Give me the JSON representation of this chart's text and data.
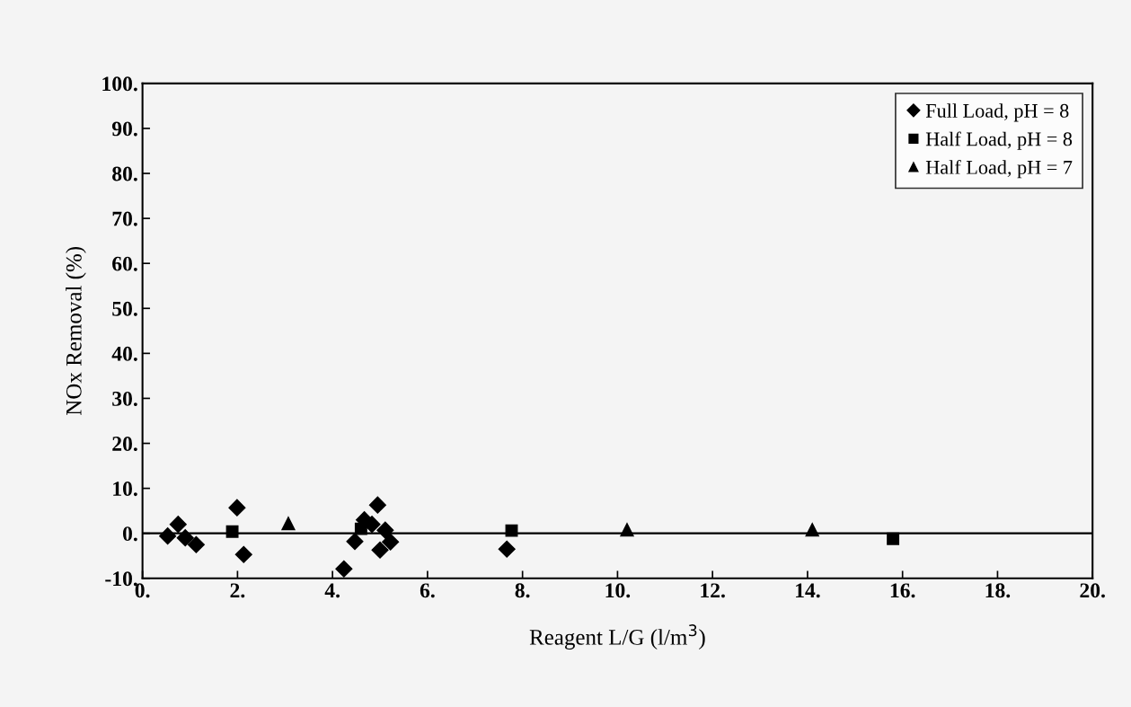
{
  "chart_data": {
    "type": "scatter",
    "xlabel": "Reagent L/G (l/m$^{3}$)",
    "ylabel": "NOx Removal (%)",
    "series": [
      {
        "name": "Full Load, pH = 8",
        "color": "#000000",
        "marker": "diamond",
        "x": [
          0.53,
          0.75,
          0.9,
          1.13,
          1.99,
          2.13,
          4.24,
          4.47,
          4.67,
          4.83,
          4.95,
          5.11,
          5.0,
          5.22,
          7.67
        ],
        "values": [
          -0.6,
          2.0,
          -1.0,
          -2.5,
          5.7,
          -4.7,
          -7.9,
          -1.8,
          3.0,
          2.0,
          6.3,
          0.7,
          -3.7,
          -1.9,
          -3.5
        ]
      },
      {
        "name": "Half Load, pH = 8",
        "color": "#000000",
        "marker": "square",
        "x": [
          1.89,
          4.6,
          7.77,
          15.8
        ],
        "values": [
          0.4,
          1.0,
          0.6,
          -1.2
        ]
      },
      {
        "name": "Half Load, pH = 7",
        "color": "#000000",
        "marker": "triangle",
        "x": [
          3.07,
          10.2,
          14.1
        ],
        "values": [
          2.2,
          0.8,
          0.8
        ]
      }
    ],
    "xlim": [
      0,
      20
    ],
    "ylim": [
      -10,
      100
    ],
    "xticks": [
      {
        "value": 0,
        "label": "0."
      },
      {
        "value": 2,
        "label": "2."
      },
      {
        "value": 4,
        "label": "4."
      },
      {
        "value": 6,
        "label": "6."
      },
      {
        "value": 8,
        "label": "8."
      },
      {
        "value": 10,
        "label": "10."
      },
      {
        "value": 12,
        "label": "12."
      },
      {
        "value": 14,
        "label": "14."
      },
      {
        "value": 16,
        "label": "16."
      },
      {
        "value": 18,
        "label": "18."
      },
      {
        "value": 20,
        "label": "20."
      }
    ],
    "yticks": [
      {
        "value": -10,
        "label": "-10."
      },
      {
        "value": 0,
        "label": "0."
      },
      {
        "value": 10,
        "label": "10."
      },
      {
        "value": 20,
        "label": "20."
      },
      {
        "value": 30,
        "label": "30."
      },
      {
        "value": 40,
        "label": "40."
      },
      {
        "value": 50,
        "label": "50."
      },
      {
        "value": 60,
        "label": "60."
      },
      {
        "value": 70,
        "label": "70."
      },
      {
        "value": 80,
        "label": "80."
      },
      {
        "value": 90,
        "label": "90."
      },
      {
        "value": 100,
        "label": "100."
      }
    ],
    "ref_lines": [
      {
        "axis": "y",
        "value": 0,
        "color": "#000000",
        "line_style": "solid"
      }
    ],
    "grid": false,
    "legend": "top right"
  }
}
